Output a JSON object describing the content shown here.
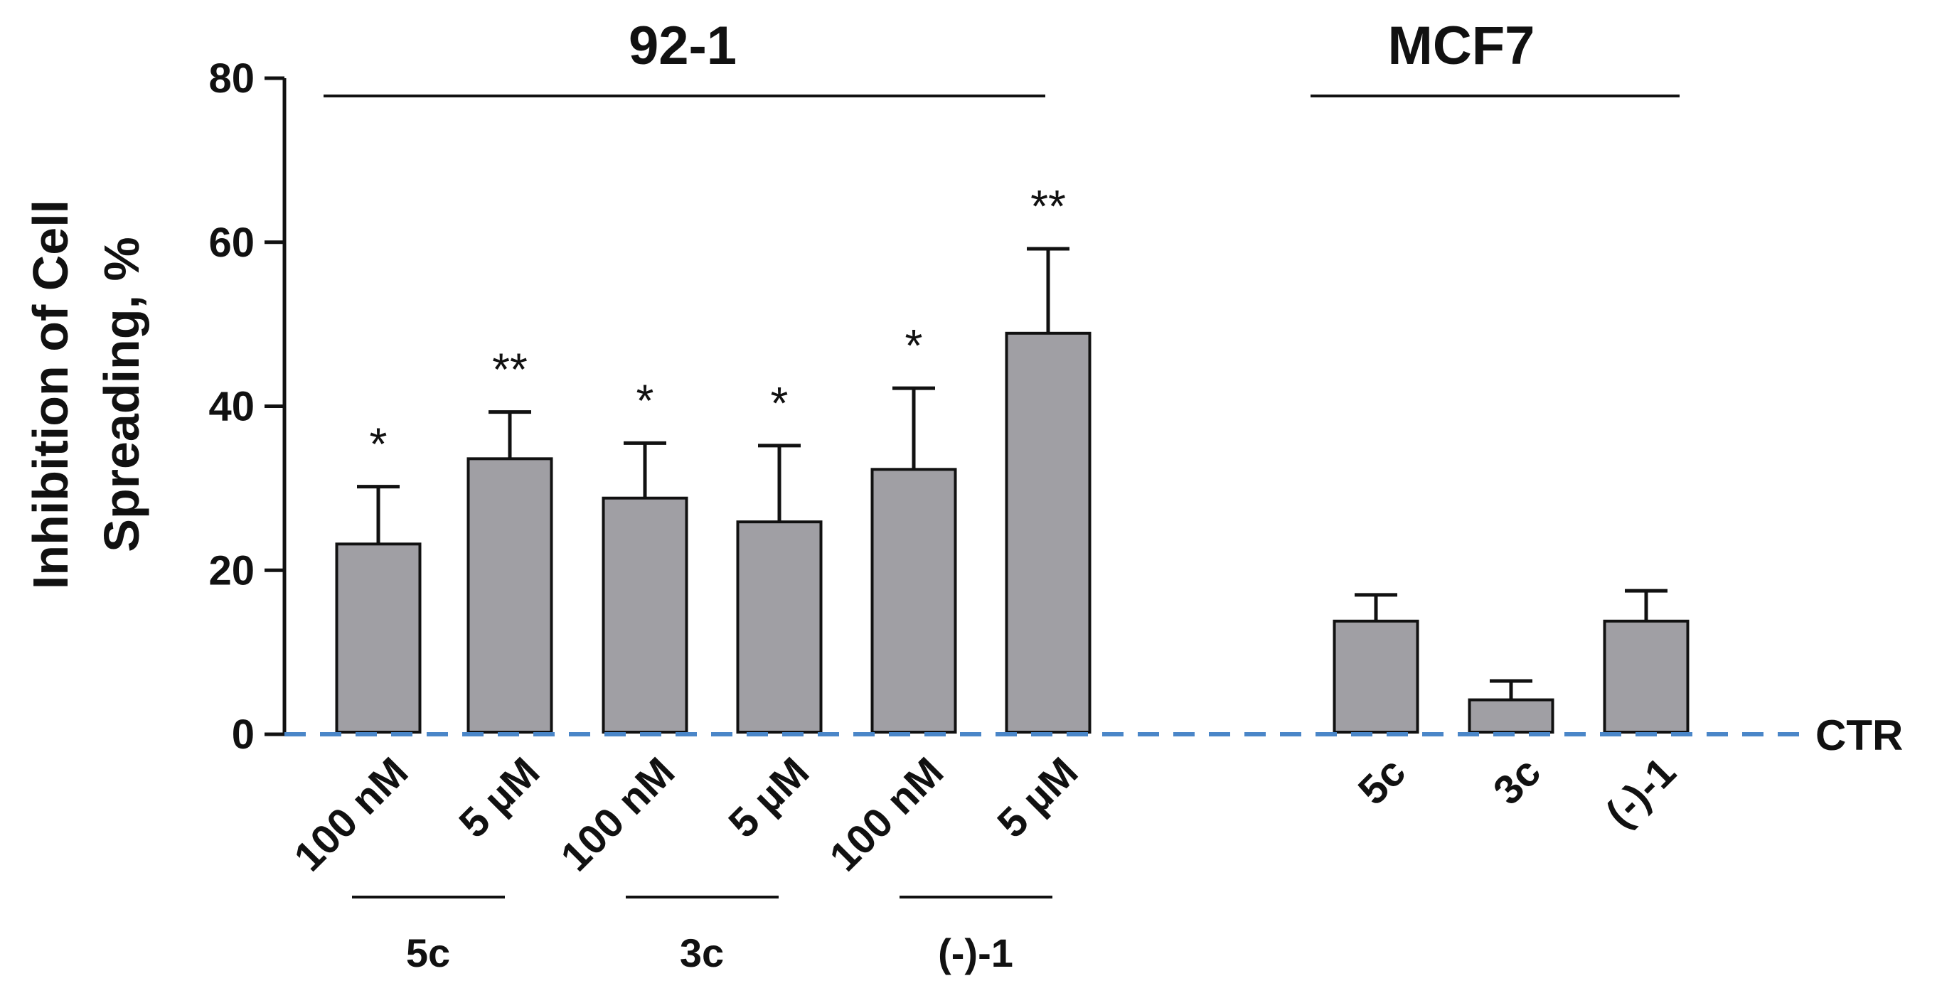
{
  "chart_data": {
    "type": "bar",
    "ylabel_lines": [
      "Inhibition of Cell",
      "Spreading, %"
    ],
    "ylim": [
      0,
      80
    ],
    "yticks": [
      0,
      20,
      40,
      60,
      80
    ],
    "reference_line": {
      "label": "CTR",
      "value": 0,
      "color": "#4a86c8"
    },
    "bar_color": "#a09fa4",
    "groups": [
      {
        "title": "92-1",
        "bars": [
          {
            "label": "100 nM",
            "compound": "5c",
            "value": 23.2,
            "error": 7.0,
            "significance": "*"
          },
          {
            "label": "5 µM",
            "compound": "5c",
            "value": 33.6,
            "error": 5.7,
            "significance": "**"
          },
          {
            "label": "100 nM",
            "compound": "3c",
            "value": 28.8,
            "error": 6.7,
            "significance": "*"
          },
          {
            "label": "5 µM",
            "compound": "3c",
            "value": 25.9,
            "error": 9.3,
            "significance": "*"
          },
          {
            "label": "100 nM",
            "compound": "(-)-1",
            "value": 32.3,
            "error": 9.9,
            "significance": "*"
          },
          {
            "label": "5 µM",
            "compound": "(-)-1",
            "value": 48.9,
            "error": 10.3,
            "significance": "**"
          }
        ],
        "compound_labels": [
          "5c",
          "3c",
          "(-)-1"
        ]
      },
      {
        "title": "MCF7",
        "bars": [
          {
            "label": "5c",
            "value": 13.8,
            "error": 3.2,
            "significance": ""
          },
          {
            "label": "3c",
            "value": 4.2,
            "error": 2.3,
            "significance": ""
          },
          {
            "label": "(-)-1",
            "value": 13.8,
            "error": 3.7,
            "significance": ""
          }
        ]
      }
    ]
  }
}
